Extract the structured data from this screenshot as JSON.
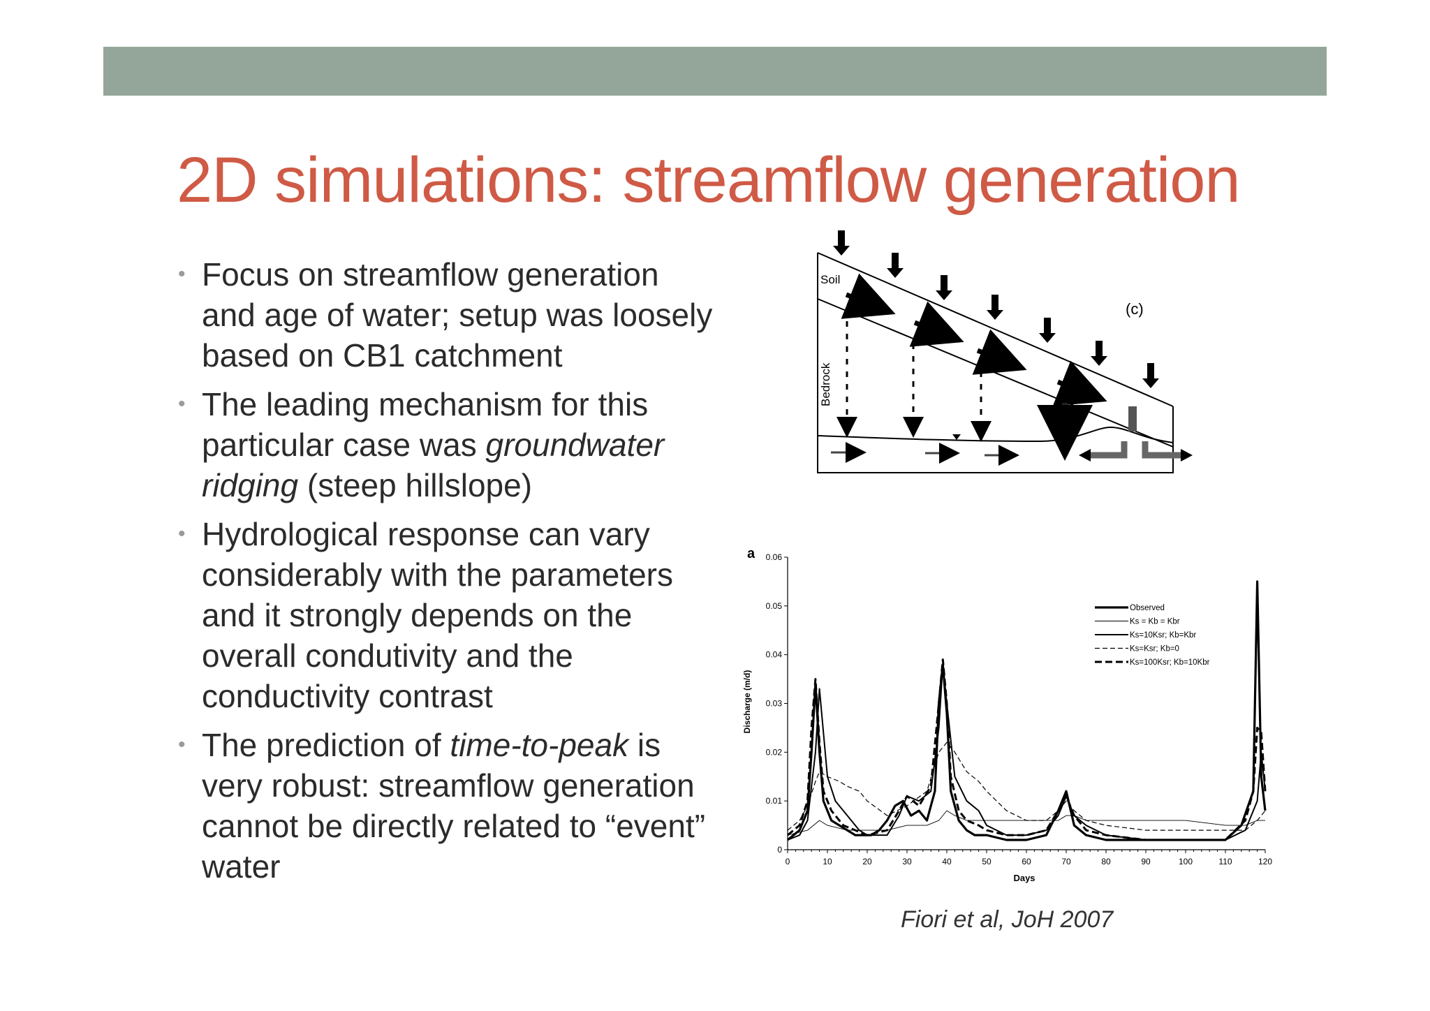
{
  "slide": {
    "title": "2D simulations: streamflow generation",
    "bullets": [
      {
        "parts": [
          {
            "text": "Focus on streamflow generation and age of water; setup was loosely based on CB1 catchment",
            "italic": false
          }
        ]
      },
      {
        "parts": [
          {
            "text": "The leading mechanism for this particular case was ",
            "italic": false
          },
          {
            "text": "groundwater ridging",
            "italic": true
          },
          {
            "text": " (steep hillslope)",
            "italic": false
          }
        ]
      },
      {
        "parts": [
          {
            "text": "Hydrological response can vary considerably with the parameters and it strongly depends on the overall condutivity and the conductivity contrast",
            "italic": false
          }
        ]
      },
      {
        "parts": [
          {
            "text": "The prediction of ",
            "italic": false
          },
          {
            "text": "time-to-peak",
            "italic": true
          },
          {
            "text": " is very robust: streamflow generation cannot be directly related to “event” water",
            "italic": false
          }
        ]
      }
    ],
    "citation": "Fiori et al, JoH 2007",
    "accent_color": "#cf5a45",
    "bar_color": "#94a699"
  },
  "diagram": {
    "panel_label": "(c)",
    "soil_label": "Soil",
    "bedrock_label": "Bedrock"
  },
  "chart_data": {
    "type": "line",
    "panel_label": "a",
    "xlabel": "Days",
    "ylabel": "Discharge (m/d)",
    "xlim": [
      0,
      120
    ],
    "ylim": [
      0,
      0.06
    ],
    "xticks": [
      0,
      10,
      20,
      30,
      40,
      50,
      60,
      70,
      80,
      90,
      100,
      110,
      120
    ],
    "yticks": [
      0,
      0.01,
      0.02,
      0.03,
      0.04,
      0.05,
      0.06
    ],
    "legend_position": "top-right",
    "series": [
      {
        "name": "Observed",
        "style": "thick",
        "x": [
          0,
          3,
          5,
          6,
          7,
          8,
          9,
          11,
          13,
          15,
          17,
          19,
          21,
          23,
          25,
          27,
          29,
          31,
          33,
          35,
          37,
          38,
          39,
          40,
          41,
          43,
          45,
          47,
          50,
          55,
          60,
          65,
          68,
          70,
          72,
          75,
          80,
          90,
          100,
          110,
          114,
          117,
          118,
          119,
          120
        ],
        "y": [
          0.002,
          0.004,
          0.008,
          0.02,
          0.034,
          0.02,
          0.01,
          0.006,
          0.005,
          0.004,
          0.003,
          0.003,
          0.003,
          0.004,
          0.006,
          0.009,
          0.01,
          0.007,
          0.008,
          0.006,
          0.012,
          0.03,
          0.038,
          0.028,
          0.012,
          0.006,
          0.004,
          0.003,
          0.003,
          0.002,
          0.002,
          0.003,
          0.008,
          0.012,
          0.005,
          0.003,
          0.002,
          0.002,
          0.002,
          0.002,
          0.005,
          0.012,
          0.055,
          0.015,
          0.008
        ]
      },
      {
        "name": "Ks = Kb = Kbr",
        "style": "thin",
        "x": [
          0,
          5,
          8,
          10,
          15,
          20,
          25,
          30,
          35,
          38,
          40,
          42,
          45,
          50,
          55,
          60,
          65,
          68,
          70,
          72,
          75,
          80,
          90,
          100,
          110,
          115,
          118,
          120
        ],
        "y": [
          0.003,
          0.004,
          0.006,
          0.005,
          0.004,
          0.004,
          0.004,
          0.005,
          0.005,
          0.006,
          0.008,
          0.007,
          0.006,
          0.006,
          0.006,
          0.006,
          0.006,
          0.006,
          0.007,
          0.007,
          0.006,
          0.006,
          0.006,
          0.006,
          0.005,
          0.005,
          0.006,
          0.006
        ]
      },
      {
        "name": "Ks=10Ksr; Kb=Kbr",
        "style": "medium",
        "x": [
          0,
          3,
          5,
          7,
          8,
          10,
          12,
          15,
          18,
          20,
          25,
          28,
          30,
          33,
          36,
          38,
          39,
          40,
          42,
          45,
          48,
          50,
          55,
          60,
          65,
          68,
          70,
          72,
          75,
          80,
          90,
          100,
          110,
          115,
          118,
          119,
          120
        ],
        "y": [
          0.002,
          0.003,
          0.006,
          0.02,
          0.033,
          0.015,
          0.01,
          0.007,
          0.004,
          0.003,
          0.003,
          0.007,
          0.011,
          0.01,
          0.012,
          0.025,
          0.038,
          0.03,
          0.015,
          0.01,
          0.008,
          0.005,
          0.003,
          0.003,
          0.004,
          0.007,
          0.011,
          0.007,
          0.005,
          0.003,
          0.002,
          0.002,
          0.002,
          0.004,
          0.01,
          0.02,
          0.012
        ]
      },
      {
        "name": "Ks=Ksr; Kb=0",
        "style": "dashed-thin",
        "x": [
          0,
          3,
          5,
          7,
          8,
          10,
          13,
          15,
          18,
          20,
          25,
          30,
          35,
          38,
          40,
          42,
          45,
          48,
          50,
          55,
          60,
          65,
          68,
          70,
          72,
          75,
          80,
          90,
          100,
          110,
          115,
          118,
          120
        ],
        "y": [
          0.004,
          0.006,
          0.009,
          0.014,
          0.016,
          0.015,
          0.014,
          0.013,
          0.012,
          0.01,
          0.007,
          0.009,
          0.012,
          0.02,
          0.022,
          0.02,
          0.016,
          0.014,
          0.012,
          0.008,
          0.006,
          0.006,
          0.008,
          0.01,
          0.008,
          0.006,
          0.005,
          0.004,
          0.004,
          0.004,
          0.004,
          0.006,
          0.008
        ]
      },
      {
        "name": "Ks=100Ksr; Kb=10Kbr",
        "style": "dashed-thick",
        "x": [
          0,
          3,
          5,
          6,
          7,
          8,
          9,
          11,
          14,
          17,
          20,
          25,
          28,
          30,
          33,
          36,
          38,
          39,
          40,
          41,
          43,
          45,
          48,
          50,
          55,
          60,
          65,
          68,
          70,
          72,
          75,
          80,
          90,
          100,
          110,
          115,
          117,
          118,
          119,
          120
        ],
        "y": [
          0.003,
          0.005,
          0.01,
          0.025,
          0.035,
          0.022,
          0.012,
          0.008,
          0.005,
          0.004,
          0.003,
          0.004,
          0.008,
          0.011,
          0.009,
          0.013,
          0.03,
          0.039,
          0.03,
          0.015,
          0.008,
          0.006,
          0.005,
          0.004,
          0.003,
          0.003,
          0.004,
          0.008,
          0.011,
          0.007,
          0.004,
          0.003,
          0.002,
          0.002,
          0.002,
          0.006,
          0.012,
          0.025,
          0.024,
          0.012
        ]
      }
    ]
  }
}
